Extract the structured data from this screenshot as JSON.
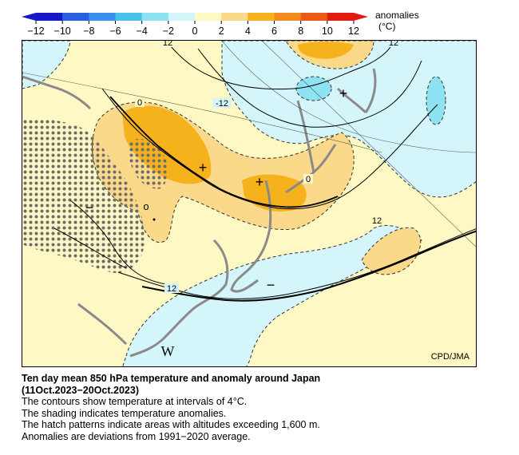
{
  "legend": {
    "title": "anomalies",
    "unit": "(°C)",
    "ticks": [
      "−12",
      "−10",
      "−8",
      "−6",
      "−4",
      "−2",
      "0",
      "2",
      "4",
      "6",
      "8",
      "10",
      "12"
    ],
    "tick_values": [
      -12,
      -10,
      -8,
      -6,
      -4,
      -2,
      0,
      2,
      4,
      6,
      8,
      10,
      12
    ],
    "colors": [
      "#1818c8",
      "#2a5fe0",
      "#3a8ff0",
      "#47c3ec",
      "#8ee3f3",
      "#d4f6fb",
      "#fdf8c4",
      "#fbd98a",
      "#f6b21c",
      "#f58a1e",
      "#ec5a16",
      "#e21c10"
    ]
  },
  "map": {
    "credit": "CPD/JMA",
    "contour_labels": [
      "12",
      "-12",
      "0",
      "0",
      "12",
      "12",
      "12",
      "12"
    ],
    "center_markers": [
      "+",
      "+",
      "−",
      "−",
      "+",
      "o"
    ],
    "w_marker": "W",
    "colors": {
      "land_outline": "#8a8a8a",
      "contour": "#000000",
      "warm_light": "#fbd98a",
      "warm_mid": "#f6b21c",
      "cool_light": "#d4f6fb",
      "cool_mid": "#8ee3f3",
      "neutral": "#fdf8c4",
      "hatch": "#6c6c6c"
    }
  },
  "caption": {
    "title_line1": "Ten day mean 850 hPa temperature and anomaly around Japan",
    "title_line2": "(11Oct.2023−20Oct.2023)",
    "line1": "The contours show temperature at intervals of 4°C.",
    "line2": "The shading indicates temperature anomalies.",
    "line3": "The hatch patterns indicate areas with altitudes exceeding 1,600 m.",
    "line4": "Anomalies are deviations from 1991−2020 average."
  }
}
